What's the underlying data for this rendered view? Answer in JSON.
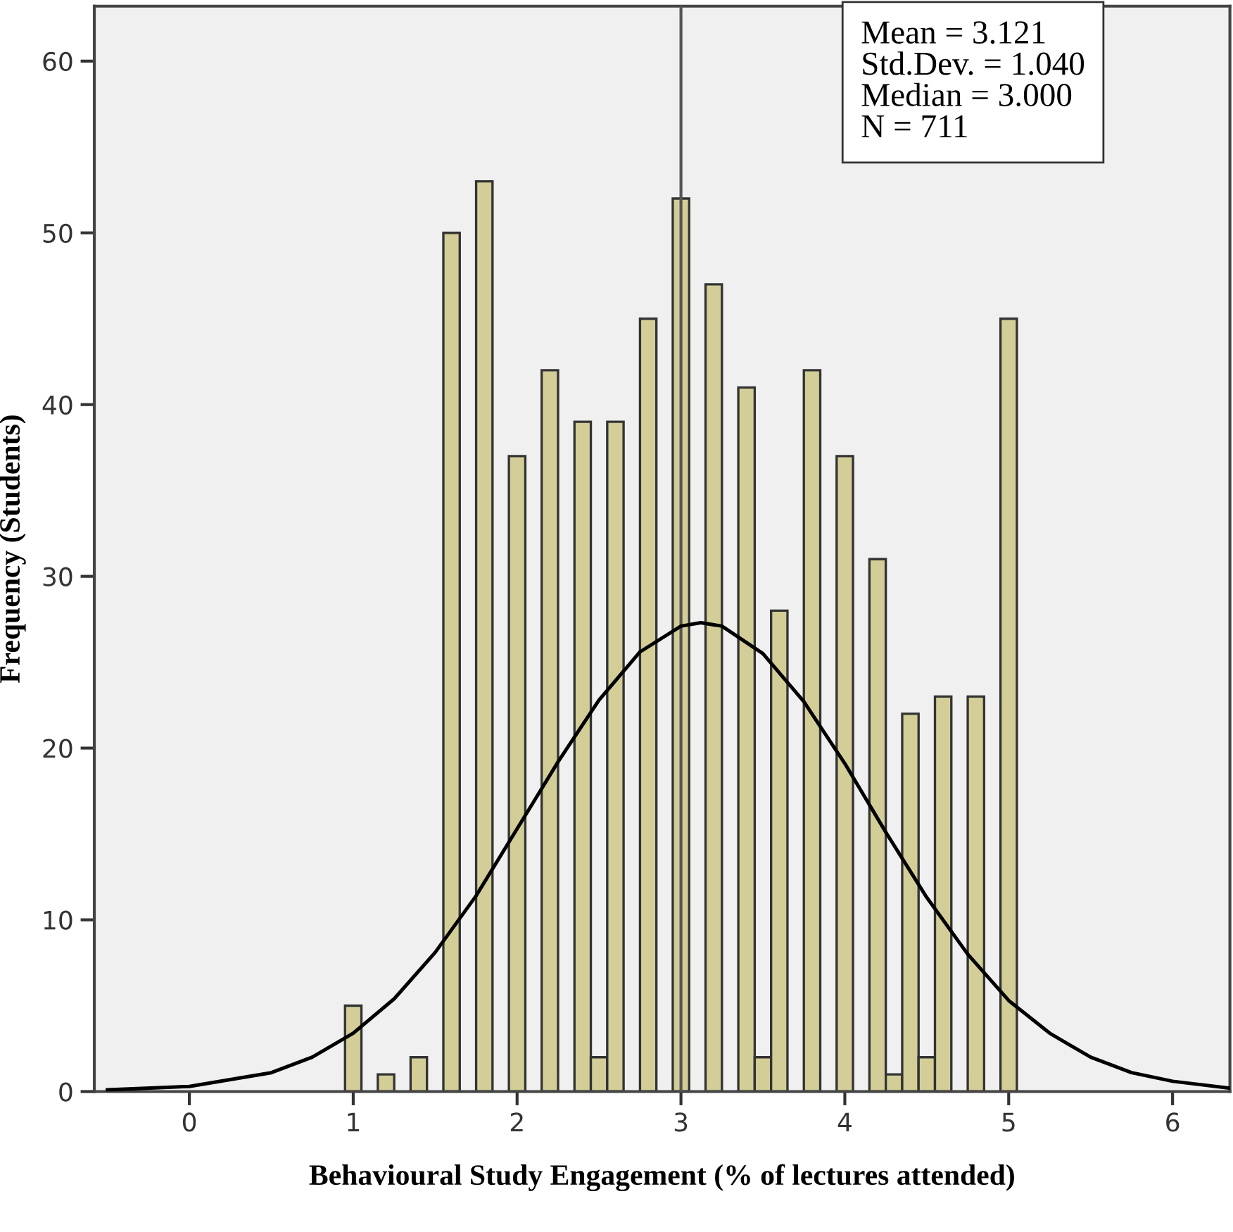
{
  "chart_data": {
    "type": "histogram",
    "xlabel": "Behavioural Study Engagement (% of lectures attended)",
    "ylabel": "Frequency (Students)",
    "bins": [
      0.95,
      1.05,
      1.15,
      1.25,
      1.35,
      1.45,
      1.55,
      1.65,
      1.75,
      1.85,
      1.95,
      2.05,
      2.15,
      2.25,
      2.35,
      2.45,
      2.55,
      2.65,
      2.75,
      2.85,
      2.95,
      3.05,
      3.15,
      3.25,
      3.35,
      3.45,
      3.55,
      3.65,
      3.75,
      3.85,
      3.95,
      4.05,
      4.15,
      4.25,
      4.35,
      4.45,
      4.55,
      4.65,
      4.75,
      4.85,
      4.95,
      5.05
    ],
    "values": [
      5,
      0,
      1,
      0,
      2,
      0,
      50,
      0,
      53,
      0,
      37,
      0,
      42,
      0,
      39,
      2,
      39,
      0,
      45,
      0,
      52,
      0,
      47,
      0,
      41,
      2,
      28,
      0,
      42,
      0,
      37,
      0,
      31,
      1,
      22,
      2,
      23,
      0,
      23,
      0,
      45
    ],
    "color": "#d3ce97",
    "series": [
      {
        "type": "line",
        "color": "#000000",
        "x": [
          -0.5,
          0,
          0.5,
          0.75,
          1,
          1.25,
          1.5,
          1.75,
          2,
          2.25,
          2.5,
          2.75,
          3,
          3.121,
          3.25,
          3.5,
          3.75,
          4,
          4.25,
          4.5,
          4.75,
          5,
          5.25,
          5.5,
          5.75,
          6,
          6.35
        ],
        "values": [
          0.1,
          0.3,
          1.1,
          2.0,
          3.4,
          5.4,
          8.1,
          11.4,
          15.3,
          19.2,
          22.8,
          25.6,
          27.1,
          27.3,
          27.1,
          25.5,
          22.7,
          19.1,
          15.1,
          11.3,
          8.0,
          5.3,
          3.4,
          2.0,
          1.1,
          0.6,
          0.2
        ]
      }
    ],
    "ref_lines": [
      {
        "axis": "x",
        "value": 3,
        "color": "#555555"
      }
    ],
    "annotations": [
      "Mean = 3.121",
      "Std.Dev. = 1.040",
      "Median = 3.000",
      "N = 711"
    ],
    "xlim": [
      -0.58,
      6.35
    ],
    "ylim": [
      0,
      63.2
    ],
    "xticks": [
      0,
      1,
      2,
      3,
      4,
      5,
      6
    ],
    "yticks": [
      0,
      10,
      20,
      30,
      40,
      50,
      60
    ],
    "grid": false
  }
}
